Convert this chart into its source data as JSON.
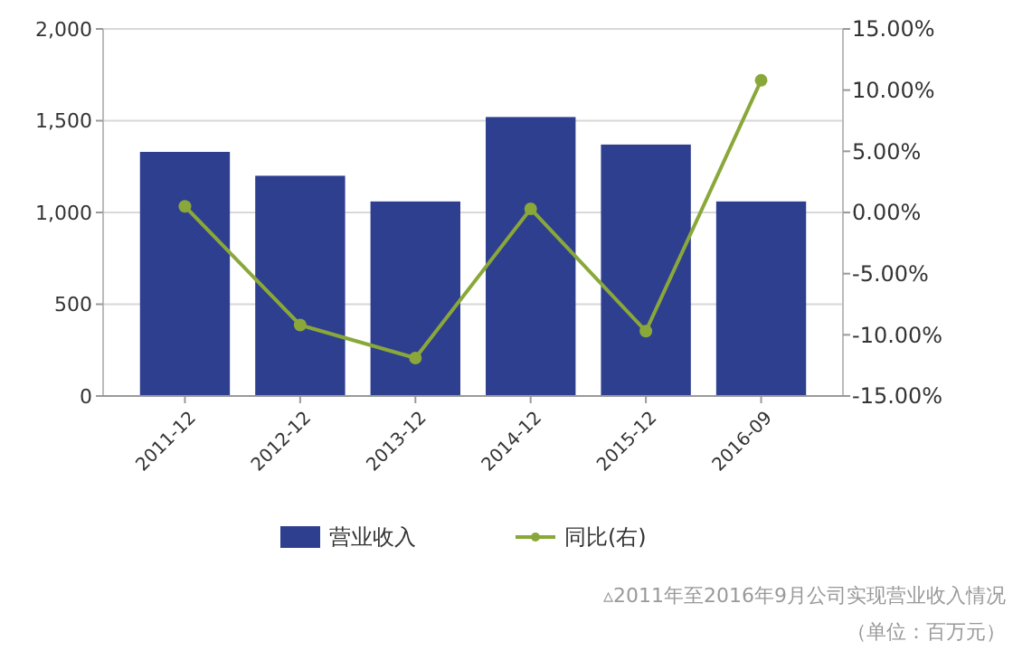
{
  "chart_data": {
    "type": "bar",
    "categories": [
      "2011-12",
      "2012-12",
      "2013-12",
      "2014-12",
      "2015-12",
      "2016-09"
    ],
    "series": [
      {
        "name": "营业收入",
        "color": "#2e3f8f",
        "values": [
          1330,
          1200,
          1060,
          1520,
          1370,
          1060
        ]
      },
      {
        "name": "同比(右)",
        "type": "line",
        "axis": "y2",
        "color": "#8aa83a",
        "marker": "circle",
        "values": [
          0.5,
          -9.2,
          -11.9,
          0.3,
          -9.7,
          10.8
        ]
      }
    ],
    "ylim": [
      0,
      2000
    ],
    "yticks": [
      0,
      500,
      {
        "value": 1000,
        "label": "1,000"
      },
      {
        "value": 1500,
        "label": "1,500"
      },
      {
        "value": 2000,
        "label": "2,000"
      }
    ],
    "y2lim": [
      -15,
      15
    ],
    "y2ticks": [
      {
        "value": -15,
        "label": "-15.00%"
      },
      {
        "value": -10,
        "label": "-10.00%"
      },
      {
        "value": -5,
        "label": "-5.00%"
      },
      {
        "value": 0,
        "label": "0.00%"
      },
      {
        "value": 5,
        "label": "5.00%"
      },
      {
        "value": 10,
        "label": "10.00%"
      },
      {
        "value": 15,
        "label": "15.00%"
      }
    ],
    "grid": "y",
    "legend": "bottom",
    "annotations": [
      "▵2011年至2016年9月公司实现营业收入情况",
      "（单位：百万元）"
    ]
  }
}
